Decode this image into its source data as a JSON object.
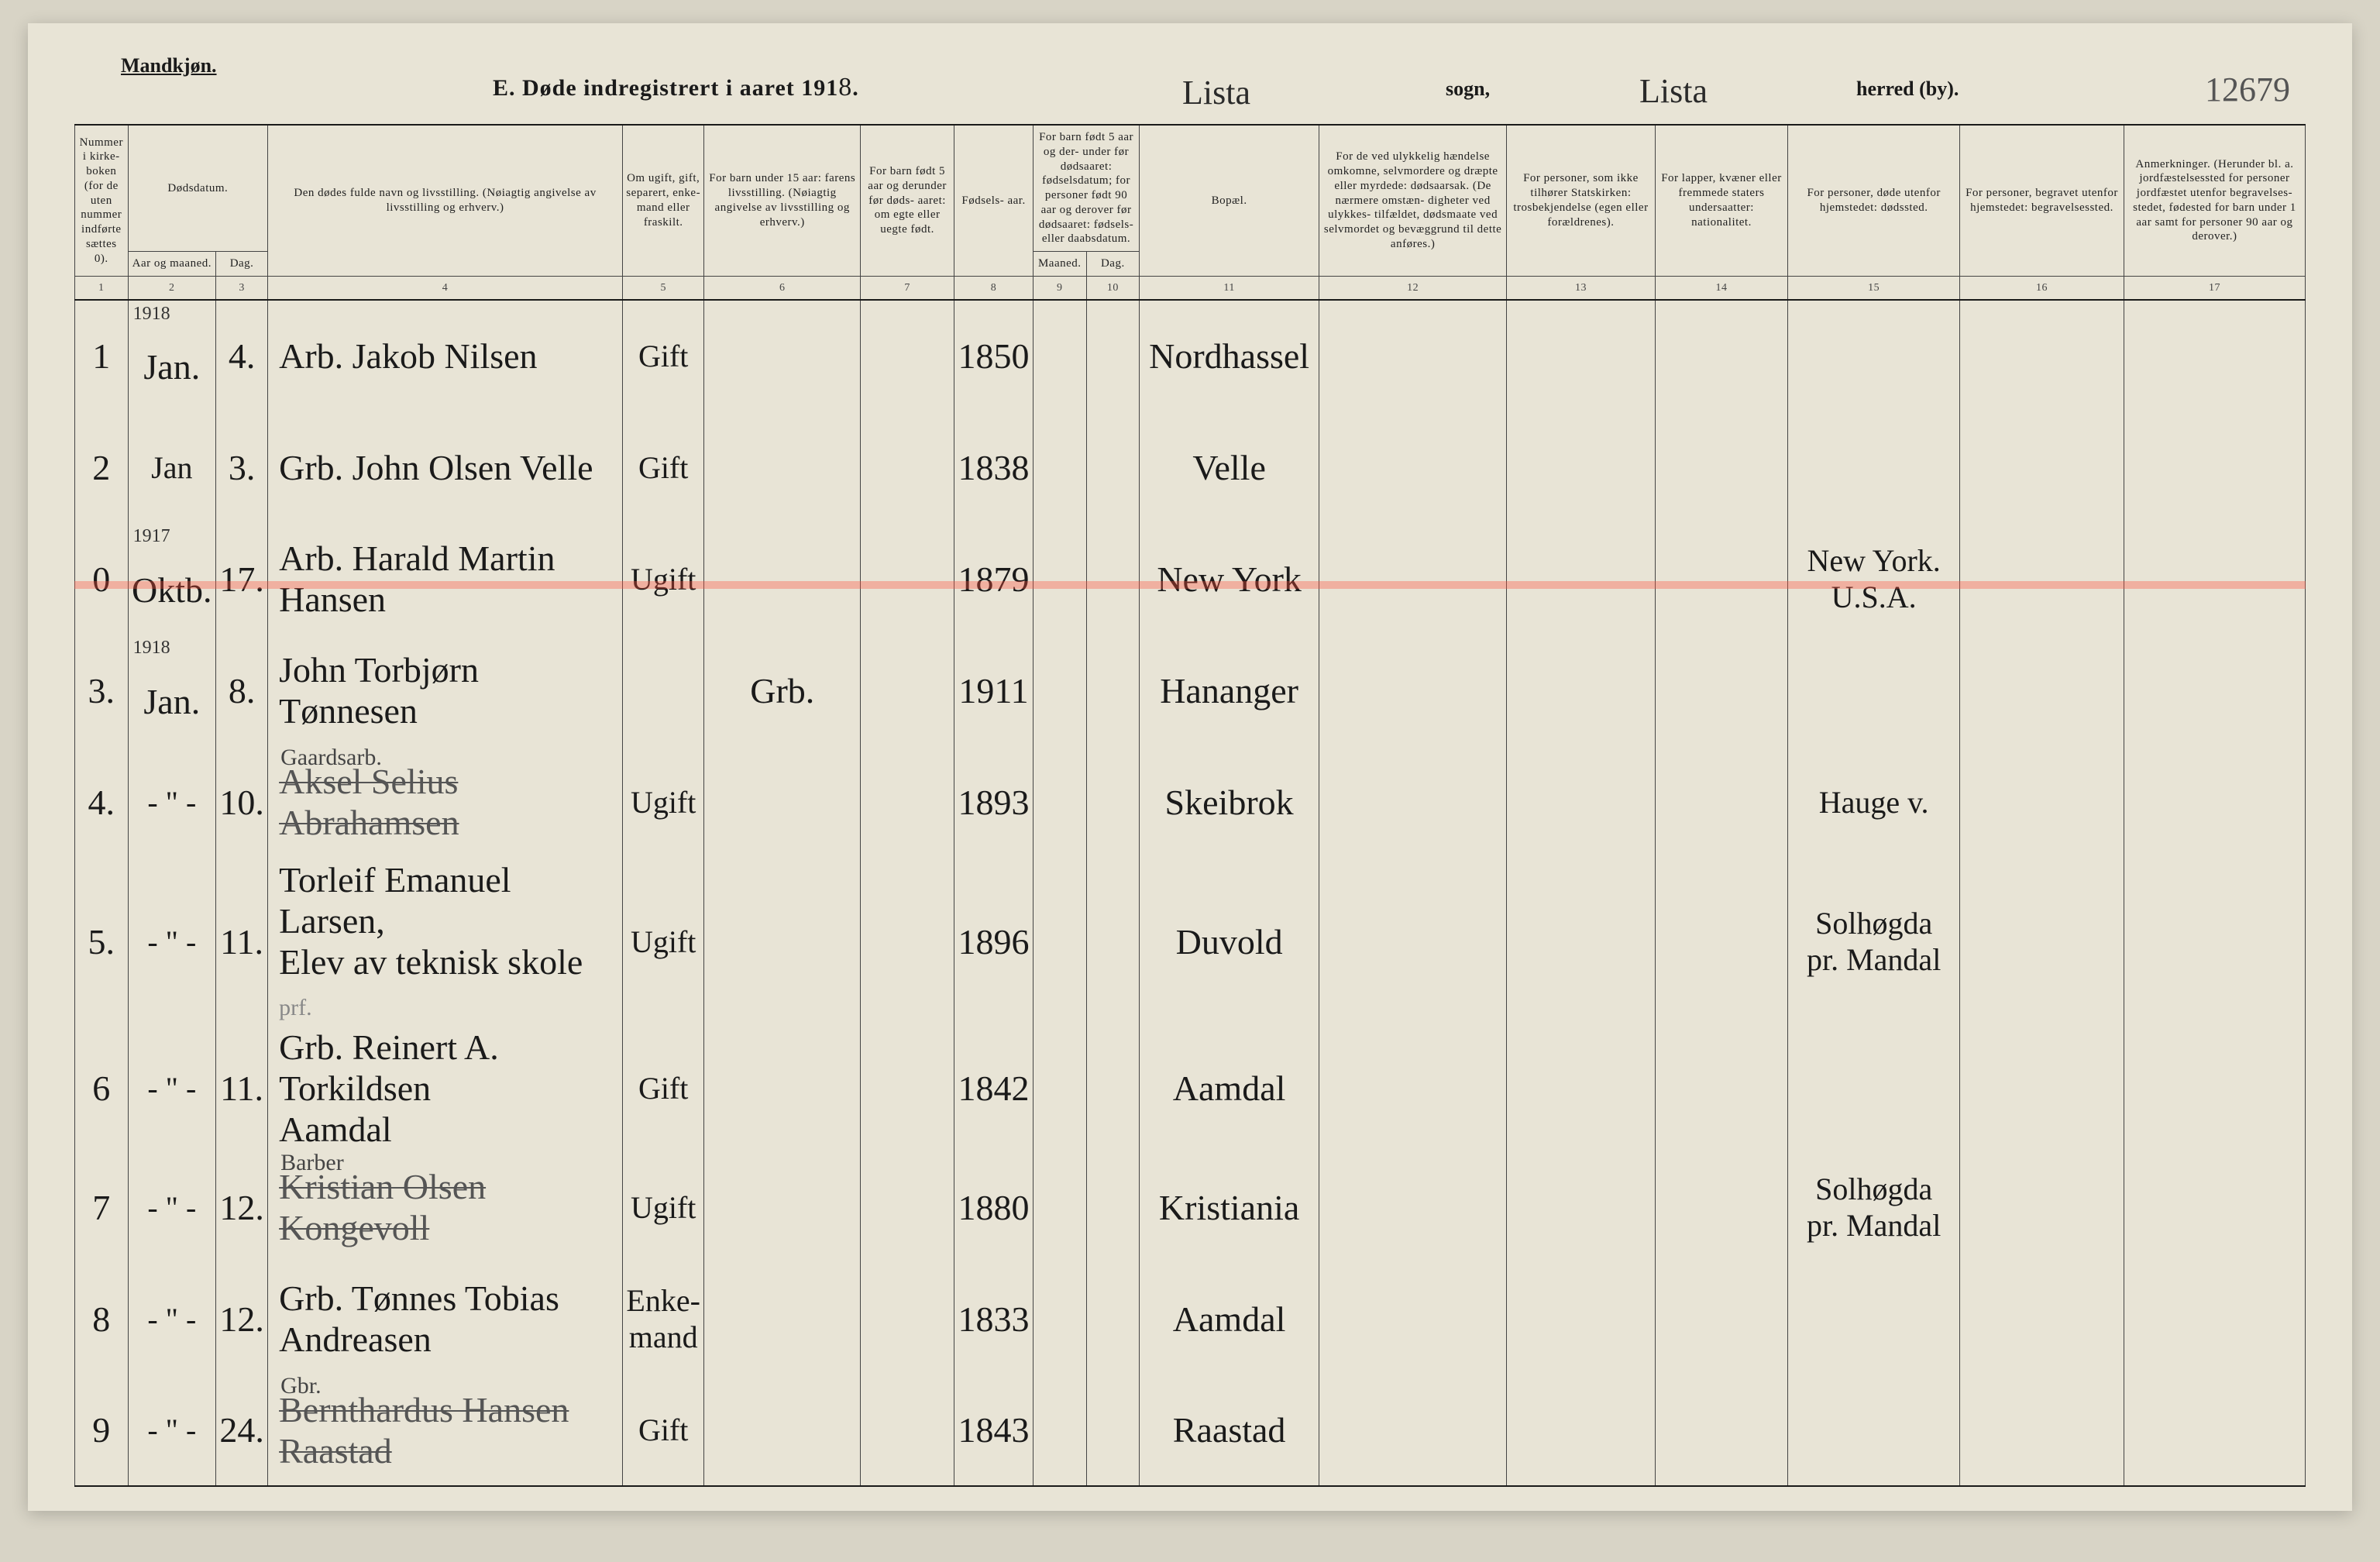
{
  "header": {
    "gender": "Mandkjøn.",
    "title_prefix": "E.  Døde indregistrert i aaret 191",
    "title_year": "8",
    "title_suffix": ".",
    "sogn_hand": "Lista",
    "sogn_label": "sogn,",
    "herred_hand": "Lista",
    "herred_label": "herred (by).",
    "pagenum": "12679"
  },
  "columns": {
    "c1": "Nummer i kirke-\nboken\n(for de uten nummer indførte sættes 0).",
    "c23_group": "Dødsdatum.",
    "c2": "Aar og maaned.",
    "c3": "Dag.",
    "c4": "Den dødes fulde navn og livsstilling.\n(Nøiagtig angivelse av livsstilling og erhverv.)",
    "c5": "Om ugift, gift, separert, enke-\nmand eller fraskilt.",
    "c6": "For barn under 15 aar: farens livsstilling.\n(Nøiagtig angivelse av livsstilling og erhverv.)",
    "c7": "For barn født 5 aar og derunder før døds-\naaret: om egte eller uegte født.",
    "c8": "Fødsels-\naar.",
    "c910_group": "For barn født 5 aar og der-\nunder før dødsaaret: fødselsdatum; for personer født 90 aar og derover før dødsaaret: fødsels- eller daabsdatum.",
    "c9": "Maaned.",
    "c10": "Dag.",
    "c11": "Bopæl.",
    "c12": "For de ved ulykkelig hændelse omkomne, selvmordere og dræpte eller myrdede: dødsaarsak.\n(De nærmere omstæn-\ndigheter ved ulykkes-\ntilfældet, dødsmaate ved selvmordet og bevæggrund til dette anføres.)",
    "c13": "For personer, som ikke tilhører Statskirken: trosbekjendelse (egen eller forældrenes).",
    "c14": "For lapper, kvæner eller fremmede staters undersaatter: nationalitet.",
    "c15": "For personer, døde utenfor hjemstedet: dødssted.",
    "c16": "For personer, begravet utenfor hjemstedet: begravelsessted.",
    "c17": "Anmerkninger.\n(Herunder bl. a. jordfæstelsessted for personer jordfæstet utenfor begravelses-\nstedet, fødested for barn under 1 aar samt for personer 90 aar og derover.)"
  },
  "colnums": [
    "1",
    "2",
    "3",
    "4",
    "5",
    "6",
    "7",
    "8",
    "9",
    "10",
    "11",
    "12",
    "13",
    "14",
    "15",
    "16",
    "17"
  ],
  "rows": [
    {
      "num": "1",
      "year": "1918",
      "month": "Jan.",
      "day": "4.",
      "name": "Arb. Jakob Nilsen",
      "marital": "Gift",
      "parent": "",
      "legit": "",
      "birth": "1850",
      "bm": "",
      "bd": "",
      "place": "Nordhassel",
      "cause": "",
      "faith": "",
      "nat": "",
      "deathplace": "",
      "burial": "",
      "remarks": ""
    },
    {
      "num": "2",
      "year": "",
      "month": "Jan",
      "day": "3.",
      "name": "Grb. John Olsen Velle",
      "marital": "Gift",
      "parent": "",
      "legit": "",
      "birth": "1838",
      "bm": "",
      "bd": "",
      "place": "Velle",
      "cause": "",
      "faith": "",
      "nat": "",
      "deathplace": "",
      "burial": "",
      "remarks": ""
    },
    {
      "num": "0",
      "year": "1917",
      "month": "Oktb.",
      "day": "17.",
      "name": "Arb. Harald Martin Hansen",
      "marital": "Ugift",
      "parent": "",
      "legit": "",
      "birth": "1879",
      "bm": "",
      "bd": "",
      "place": "New York",
      "cause": "",
      "faith": "",
      "nat": "",
      "deathplace": "New York. U.S.A.",
      "burial": "",
      "remarks": "",
      "highlight": true
    },
    {
      "num": "3.",
      "year": "1918",
      "month": "Jan.",
      "day": "8.",
      "name": "John Torbjørn Tønnesen",
      "marital": "",
      "parent": "Grb.",
      "legit": "",
      "birth": "1911",
      "bm": "",
      "bd": "",
      "place": "Hananger",
      "cause": "",
      "faith": "",
      "nat": "",
      "deathplace": "",
      "burial": "",
      "remarks": ""
    },
    {
      "num": "4.",
      "year": "",
      "month": "- \" -",
      "day": "10.",
      "name": "Aksel Selius Abrahamsen",
      "name_note": "Gaardsarb.",
      "marital": "Ugift",
      "parent": "",
      "legit": "",
      "birth": "1893",
      "bm": "",
      "bd": "",
      "place": "Skeibrok",
      "cause": "",
      "faith": "",
      "nat": "",
      "deathplace": "Hauge v.",
      "burial": "",
      "remarks": ""
    },
    {
      "num": "5.",
      "year": "",
      "month": "- \" -",
      "day": "11.",
      "name": "Torleif Emanuel Larsen,\nElev av teknisk skole",
      "name_suffix": "prf.",
      "marital": "Ugift",
      "parent": "",
      "legit": "",
      "birth": "1896",
      "bm": "",
      "bd": "",
      "place": "Duvold",
      "cause": "",
      "faith": "",
      "nat": "",
      "deathplace": "Solhøgda\npr. Mandal",
      "burial": "",
      "remarks": ""
    },
    {
      "num": "6",
      "year": "",
      "month": "- \" -",
      "day": "11.",
      "name": "Grb. Reinert A. Torkildsen\n                 Aamdal",
      "marital": "Gift",
      "parent": "",
      "legit": "",
      "birth": "1842",
      "bm": "",
      "bd": "",
      "place": "Aamdal",
      "cause": "",
      "faith": "",
      "nat": "",
      "deathplace": "",
      "burial": "",
      "remarks": ""
    },
    {
      "num": "7",
      "year": "",
      "month": "- \" -",
      "day": "12.",
      "name": "Kristian Olsen Kongevoll",
      "name_note": "Barber",
      "marital": "Ugift",
      "parent": "",
      "legit": "",
      "birth": "1880",
      "bm": "",
      "bd": "",
      "place": "Kristiania",
      "cause": "",
      "faith": "",
      "nat": "",
      "deathplace": "Solhøgda\npr. Mandal",
      "burial": "",
      "remarks": ""
    },
    {
      "num": "8",
      "year": "",
      "month": "- \" -",
      "day": "12.",
      "name": "Grb. Tønnes Tobias Andreasen",
      "marital": "Enke-\nmand",
      "parent": "",
      "legit": "",
      "birth": "1833",
      "bm": "",
      "bd": "",
      "place": "Aamdal",
      "cause": "",
      "faith": "",
      "nat": "",
      "deathplace": "",
      "burial": "",
      "remarks": ""
    },
    {
      "num": "9",
      "year": "",
      "month": "- \" -",
      "day": "24.",
      "name": "Bernthardus Hansen Raastad",
      "name_note": "Gbr.",
      "marital": "Gift",
      "parent": "",
      "legit": "",
      "birth": "1843",
      "bm": "",
      "bd": "",
      "place": "Raastad",
      "cause": "",
      "faith": "",
      "nat": "",
      "deathplace": "",
      "burial": "",
      "remarks": ""
    }
  ],
  "style": {
    "page_bg": "#e8e4d6",
    "body_bg": "#d8d4c6",
    "ink": "#1a1a1a",
    "rule": "#444",
    "highlight": "rgba(255,80,60,0.35)",
    "print_font": "Georgia, 'Times New Roman', serif",
    "script_font": "'Brush Script MT', cursive"
  }
}
